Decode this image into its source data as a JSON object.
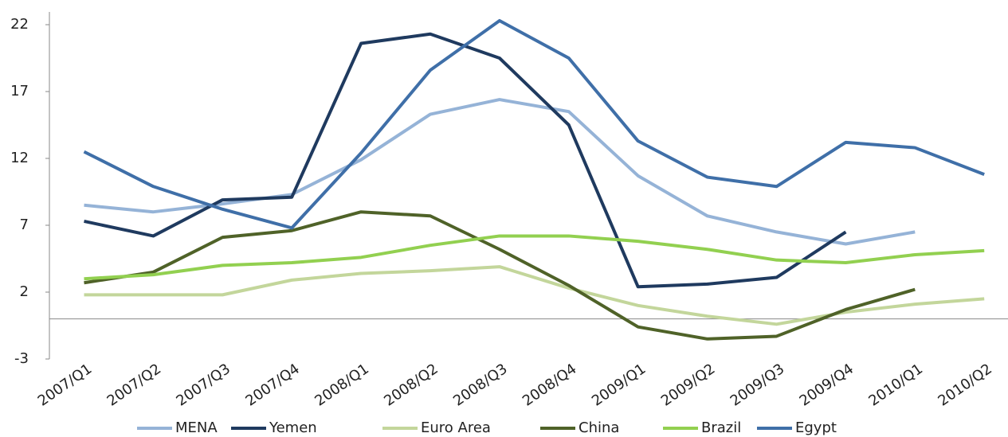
{
  "chart_data": {
    "type": "line",
    "categories": [
      "2007/Q1",
      "2007/Q2",
      "2007/Q3",
      "2007/Q4",
      "2008/Q1",
      "2008/Q2",
      "2008/Q3",
      "2008/Q4",
      "2009/Q1",
      "2009/Q2",
      "2009/Q3",
      "2009/Q4",
      "2010/Q1",
      "2010/Q2"
    ],
    "series": [
      {
        "name": "MENA",
        "color": "#95b3d7",
        "values": [
          8.5,
          8.0,
          8.6,
          9.3,
          11.9,
          15.3,
          16.4,
          15.5,
          10.7,
          7.7,
          6.5,
          5.6,
          6.5,
          null
        ]
      },
      {
        "name": "Yemen",
        "color": "#1f3a5f",
        "values": [
          7.3,
          6.2,
          8.9,
          9.1,
          20.6,
          21.3,
          19.5,
          14.5,
          2.4,
          2.6,
          3.1,
          6.5,
          null,
          null
        ]
      },
      {
        "name": "Euro Area",
        "color": "#c3d69b",
        "values": [
          1.8,
          1.8,
          1.8,
          2.9,
          3.4,
          3.6,
          3.9,
          2.3,
          1.0,
          0.2,
          -0.4,
          0.5,
          1.1,
          1.5
        ]
      },
      {
        "name": "China",
        "color": "#4f6228",
        "values": [
          2.7,
          3.5,
          6.1,
          6.6,
          8.0,
          7.7,
          5.2,
          2.5,
          -0.6,
          -1.5,
          -1.3,
          0.7,
          2.2,
          null
        ]
      },
      {
        "name": "Brazil",
        "color": "#92d050",
        "values": [
          3.0,
          3.3,
          4.0,
          4.2,
          4.6,
          5.5,
          6.2,
          6.2,
          5.8,
          5.2,
          4.4,
          4.2,
          4.8,
          5.1
        ]
      },
      {
        "name": "Egypt",
        "color": "#3f6fa8",
        "values": [
          12.5,
          9.9,
          8.2,
          6.8,
          12.4,
          18.6,
          22.3,
          19.5,
          13.3,
          10.6,
          9.9,
          13.2,
          12.8,
          10.8
        ]
      }
    ],
    "ylim": [
      -3,
      22
    ],
    "yticks": [
      -3,
      2,
      7,
      12,
      17,
      22
    ],
    "grid": false,
    "legend": "bottom"
  }
}
